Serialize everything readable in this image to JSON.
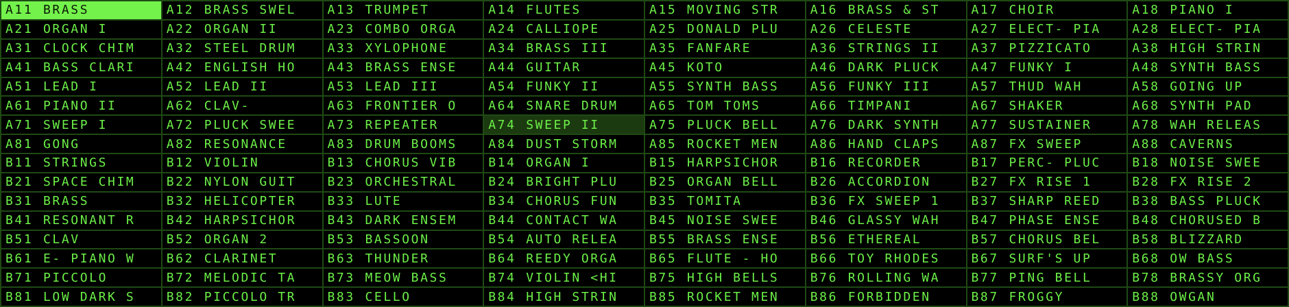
{
  "colors": {
    "text": "#6cf048",
    "background": "#000000",
    "grid": "#1f4a14",
    "selected_bg": "#74f24c",
    "highlight_bg": "#1c3a10"
  },
  "selected": "A11",
  "highlighted": "A74",
  "rows": [
    [
      {
        "code": "A11",
        "name": "BRASS"
      },
      {
        "code": "A12",
        "name": "BRASS SWEL"
      },
      {
        "code": "A13",
        "name": "TRUMPET"
      },
      {
        "code": "A14",
        "name": "FLUTES"
      },
      {
        "code": "A15",
        "name": "MOVING STR"
      },
      {
        "code": "A16",
        "name": "BRASS & ST"
      },
      {
        "code": "A17",
        "name": "CHOIR"
      },
      {
        "code": "A18",
        "name": "PIANO I"
      }
    ],
    [
      {
        "code": "A21",
        "name": "ORGAN I"
      },
      {
        "code": "A22",
        "name": "ORGAN II"
      },
      {
        "code": "A23",
        "name": "COMBO ORGA"
      },
      {
        "code": "A24",
        "name": "CALLIOPE"
      },
      {
        "code": "A25",
        "name": "DONALD PLU"
      },
      {
        "code": "A26",
        "name": "CELESTE"
      },
      {
        "code": "A27",
        "name": "ELECT- PIA"
      },
      {
        "code": "A28",
        "name": "ELECT- PIA"
      }
    ],
    [
      {
        "code": "A31",
        "name": "CLOCK CHIM"
      },
      {
        "code": "A32",
        "name": "STEEL DRUM"
      },
      {
        "code": "A33",
        "name": "XYLOPHONE"
      },
      {
        "code": "A34",
        "name": "BRASS III"
      },
      {
        "code": "A35",
        "name": "FANFARE"
      },
      {
        "code": "A36",
        "name": "STRINGS II"
      },
      {
        "code": "A37",
        "name": "PIZZICATO"
      },
      {
        "code": "A38",
        "name": "HIGH STRIN"
      }
    ],
    [
      {
        "code": "A41",
        "name": "BASS CLARI"
      },
      {
        "code": "A42",
        "name": "ENGLISH HO"
      },
      {
        "code": "A43",
        "name": "BRASS ENSE"
      },
      {
        "code": "A44",
        "name": "GUITAR"
      },
      {
        "code": "A45",
        "name": "KOTO"
      },
      {
        "code": "A46",
        "name": "DARK PLUCK"
      },
      {
        "code": "A47",
        "name": "FUNKY I"
      },
      {
        "code": "A48",
        "name": "SYNTH BASS"
      }
    ],
    [
      {
        "code": "A51",
        "name": "LEAD I"
      },
      {
        "code": "A52",
        "name": "LEAD II"
      },
      {
        "code": "A53",
        "name": "LEAD III"
      },
      {
        "code": "A54",
        "name": "FUNKY II"
      },
      {
        "code": "A55",
        "name": "SYNTH BASS"
      },
      {
        "code": "A56",
        "name": "FUNKY III"
      },
      {
        "code": "A57",
        "name": "THUD WAH"
      },
      {
        "code": "A58",
        "name": "GOING UP"
      }
    ],
    [
      {
        "code": "A61",
        "name": "PIANO II"
      },
      {
        "code": "A62",
        "name": "CLAV-"
      },
      {
        "code": "A63",
        "name": "FRONTIER O"
      },
      {
        "code": "A64",
        "name": "SNARE DRUM"
      },
      {
        "code": "A65",
        "name": "TOM TOMS"
      },
      {
        "code": "A66",
        "name": "TIMPANI"
      },
      {
        "code": "A67",
        "name": "SHAKER"
      },
      {
        "code": "A68",
        "name": "SYNTH PAD"
      }
    ],
    [
      {
        "code": "A71",
        "name": "SWEEP I"
      },
      {
        "code": "A72",
        "name": "PLUCK SWEE"
      },
      {
        "code": "A73",
        "name": "REPEATER"
      },
      {
        "code": "A74",
        "name": "SWEEP II"
      },
      {
        "code": "A75",
        "name": "PLUCK BELL"
      },
      {
        "code": "A76",
        "name": "DARK SYNTH"
      },
      {
        "code": "A77",
        "name": "SUSTAINER"
      },
      {
        "code": "A78",
        "name": "WAH RELEAS"
      }
    ],
    [
      {
        "code": "A81",
        "name": "GONG"
      },
      {
        "code": "A82",
        "name": "RESONANCE"
      },
      {
        "code": "A83",
        "name": "DRUM BOOMS"
      },
      {
        "code": "A84",
        "name": "DUST STORM"
      },
      {
        "code": "A85",
        "name": "ROCKET MEN"
      },
      {
        "code": "A86",
        "name": "HAND CLAPS"
      },
      {
        "code": "A87",
        "name": "FX SWEEP"
      },
      {
        "code": "A88",
        "name": "CAVERNS"
      }
    ],
    [
      {
        "code": "B11",
        "name": "STRINGS"
      },
      {
        "code": "B12",
        "name": "VIOLIN"
      },
      {
        "code": "B13",
        "name": "CHORUS VIB"
      },
      {
        "code": "B14",
        "name": "ORGAN I"
      },
      {
        "code": "B15",
        "name": "HARPSICHOR"
      },
      {
        "code": "B16",
        "name": "RECORDER"
      },
      {
        "code": "B17",
        "name": "PERC- PLUC"
      },
      {
        "code": "B18",
        "name": "NOISE SWEE"
      }
    ],
    [
      {
        "code": "B21",
        "name": "SPACE CHIM"
      },
      {
        "code": "B22",
        "name": "NYLON GUIT"
      },
      {
        "code": "B23",
        "name": "ORCHESTRAL"
      },
      {
        "code": "B24",
        "name": "BRIGHT PLU"
      },
      {
        "code": "B25",
        "name": "ORGAN BELL"
      },
      {
        "code": "B26",
        "name": "ACCORDION"
      },
      {
        "code": "B27",
        "name": "FX RISE 1"
      },
      {
        "code": "B28",
        "name": "FX RISE 2"
      }
    ],
    [
      {
        "code": "B31",
        "name": "BRASS"
      },
      {
        "code": "B32",
        "name": "HELICOPTER"
      },
      {
        "code": "B33",
        "name": "LUTE"
      },
      {
        "code": "B34",
        "name": "CHORUS FUN"
      },
      {
        "code": "B35",
        "name": "TOMITA"
      },
      {
        "code": "B36",
        "name": "FX SWEEP 1"
      },
      {
        "code": "B37",
        "name": "SHARP REED"
      },
      {
        "code": "B38",
        "name": "BASS PLUCK"
      }
    ],
    [
      {
        "code": "B41",
        "name": "RESONANT R"
      },
      {
        "code": "B42",
        "name": "HARPSICHOR"
      },
      {
        "code": "B43",
        "name": "DARK ENSEM"
      },
      {
        "code": "B44",
        "name": "CONTACT WA"
      },
      {
        "code": "B45",
        "name": "NOISE SWEE"
      },
      {
        "code": "B46",
        "name": "GLASSY WAH"
      },
      {
        "code": "B47",
        "name": "PHASE ENSE"
      },
      {
        "code": "B48",
        "name": "CHORUSED B"
      }
    ],
    [
      {
        "code": "B51",
        "name": "CLAV"
      },
      {
        "code": "B52",
        "name": "ORGAN 2"
      },
      {
        "code": "B53",
        "name": "BASSOON"
      },
      {
        "code": "B54",
        "name": "AUTO RELEA"
      },
      {
        "code": "B55",
        "name": "BRASS ENSE"
      },
      {
        "code": "B56",
        "name": "ETHEREAL"
      },
      {
        "code": "B57",
        "name": "CHORUS BEL"
      },
      {
        "code": "B58",
        "name": "BLIZZARD"
      }
    ],
    [
      {
        "code": "B61",
        "name": "E- PIANO W"
      },
      {
        "code": "B62",
        "name": "CLARINET"
      },
      {
        "code": "B63",
        "name": "THUNDER"
      },
      {
        "code": "B64",
        "name": "REEDY ORGA"
      },
      {
        "code": "B65",
        "name": "FLUTE - HO"
      },
      {
        "code": "B66",
        "name": "TOY RHODES"
      },
      {
        "code": "B67",
        "name": "SURF'S UP"
      },
      {
        "code": "B68",
        "name": "OW BASS"
      }
    ],
    [
      {
        "code": "B71",
        "name": "PICCOLO"
      },
      {
        "code": "B72",
        "name": "MELODIC TA"
      },
      {
        "code": "B73",
        "name": "MEOW BASS"
      },
      {
        "code": "B74",
        "name": "VIOLIN <HI"
      },
      {
        "code": "B75",
        "name": "HIGH BELLS"
      },
      {
        "code": "B76",
        "name": "ROLLING WA"
      },
      {
        "code": "B77",
        "name": "PING BELL"
      },
      {
        "code": "B78",
        "name": "BRASSY ORG"
      }
    ],
    [
      {
        "code": "B81",
        "name": "LOW DARK S"
      },
      {
        "code": "B82",
        "name": "PICCOLO TR"
      },
      {
        "code": "B83",
        "name": "CELLO"
      },
      {
        "code": "B84",
        "name": "HIGH STRIN"
      },
      {
        "code": "B85",
        "name": "ROCKET MEN"
      },
      {
        "code": "B86",
        "name": "FORBIDDEN"
      },
      {
        "code": "B87",
        "name": "FROGGY"
      },
      {
        "code": "B88",
        "name": "OWGAN"
      }
    ]
  ]
}
